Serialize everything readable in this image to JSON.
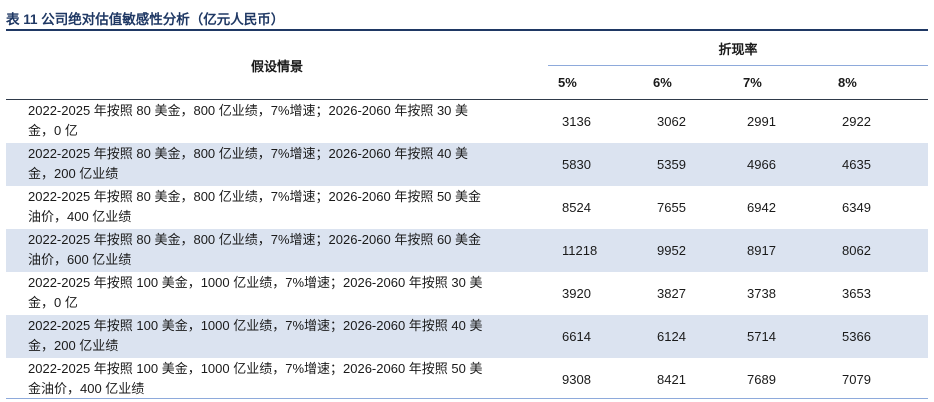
{
  "title": "表 11 公司绝对估值敏感性分析（亿元人民币）",
  "header": {
    "scenario": "假设情景",
    "discount_rate": "折现率",
    "rates": [
      "5%",
      "6%",
      "7%",
      "8%"
    ]
  },
  "rows": [
    {
      "scenario": [
        "2022-2025 年按照 80 美金，800 亿业绩，7%增速；2026-2060 年按照 30 美",
        "金，0 亿"
      ],
      "values": [
        "3136",
        "3062",
        "2991",
        "2922"
      ]
    },
    {
      "scenario": [
        "2022-2025 年按照 80 美金，800 亿业绩，7%增速；2026-2060 年按照 40 美",
        "金，200 亿业绩"
      ],
      "values": [
        "5830",
        "5359",
        "4966",
        "4635"
      ]
    },
    {
      "scenario": [
        "2022-2025 年按照 80 美金，800 亿业绩，7%增速；2026-2060 年按照 50 美金",
        "油价，400 亿业绩"
      ],
      "values": [
        "8524",
        "7655",
        "6942",
        "6349"
      ]
    },
    {
      "scenario": [
        "2022-2025 年按照 80 美金，800 亿业绩，7%增速；2026-2060 年按照 60 美金",
        "油价，600 亿业绩"
      ],
      "values": [
        "11218",
        "9952",
        "8917",
        "8062"
      ]
    },
    {
      "scenario": [
        "2022-2025 年按照 100 美金，1000 亿业绩，7%增速；2026-2060 年按照 30 美",
        "金，0 亿"
      ],
      "values": [
        "3920",
        "3827",
        "3738",
        "3653"
      ]
    },
    {
      "scenario": [
        "2022-2025 年按照 100 美金，1000 亿业绩，7%增速；2026-2060 年按照 40 美",
        "金，200 亿业绩"
      ],
      "values": [
        "6614",
        "6124",
        "5714",
        "5366"
      ]
    },
    {
      "scenario": [
        "2022-2025 年按照 100 美金，1000 亿业绩，7%增速；2026-2060 年按照 50 美",
        "金油价，400 亿业绩"
      ],
      "values": [
        "9308",
        "8421",
        "7689",
        "7079"
      ]
    }
  ]
}
